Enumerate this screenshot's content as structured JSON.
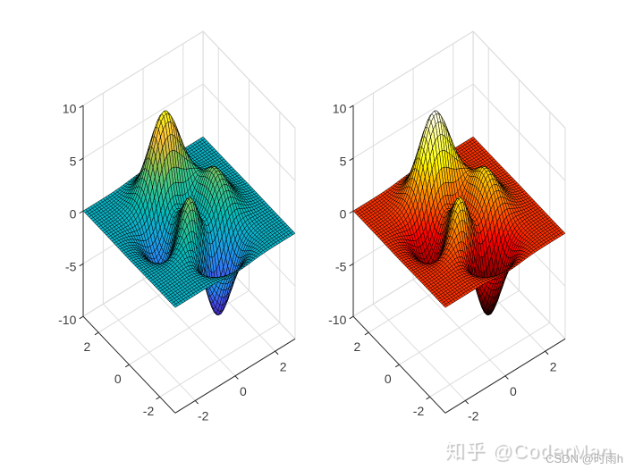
{
  "figure": {
    "background": "#ffffff",
    "watermarks": [
      {
        "id": "zhihu",
        "text": "知乎 @CoderMan"
      },
      {
        "id": "csdn",
        "text": "CSDN @时雨h"
      }
    ]
  },
  "chart_data": [
    {
      "type": "surface",
      "title": "",
      "function": "matlab_peaks",
      "formula": "z = 3*(1-x)^2*exp(-x^2-(y+1)^2) - 10*(x/5 - x^3 - y^5)*exp(-x^2-y^2) - (1/3)*exp(-(x+1)^2 - y^2)",
      "x_range": [
        -3,
        3
      ],
      "y_range": [
        -3,
        3
      ],
      "zlim": [
        -10,
        10
      ],
      "grid_points": 49,
      "x_ticks": [
        -2,
        0,
        2
      ],
      "y_ticks": [
        -2,
        0,
        2
      ],
      "z_ticks": [
        -10,
        -5,
        0,
        5,
        10
      ],
      "colormap": "parula",
      "view": {
        "azimuth": -37.5,
        "elevation": 30
      },
      "grid": true,
      "edge_color": "#000000"
    },
    {
      "type": "surface",
      "title": "",
      "function": "matlab_peaks",
      "formula": "z = 3*(1-x)^2*exp(-x^2-(y+1)^2) - 10*(x/5 - x^3 - y^5)*exp(-x^2-y^2) - (1/3)*exp(-(x+1)^2 - y^2)",
      "x_range": [
        -3,
        3
      ],
      "y_range": [
        -3,
        3
      ],
      "zlim": [
        -10,
        10
      ],
      "grid_points": 49,
      "x_ticks": [
        -2,
        0,
        2
      ],
      "y_ticks": [
        -2,
        0,
        2
      ],
      "z_ticks": [
        -10,
        -5,
        0,
        5,
        10
      ],
      "colormap": "hot",
      "view": {
        "azimuth": -37.5,
        "elevation": 30
      },
      "grid": true,
      "edge_color": "#000000"
    }
  ],
  "colors": {
    "axis": "#262626",
    "grid": "#dcdcdc",
    "tick_label": "#3c3c3c"
  }
}
